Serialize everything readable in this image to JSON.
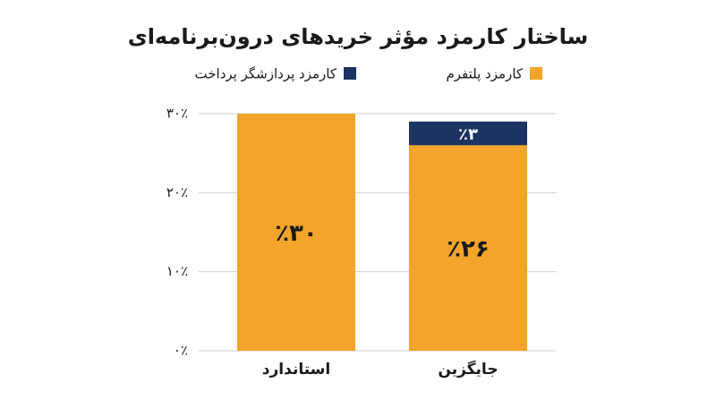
{
  "chart_data": {
    "type": "stacked_bar",
    "title": "ساختار کارمزد مؤثر خریدهای درون‌برنامه‌ای",
    "categories": [
      "استاندارد",
      "جایگزین"
    ],
    "series": [
      {
        "name": "کارمزد پلتفرم",
        "color": "#f2a52a",
        "values": [
          30,
          26
        ],
        "value_labels": [
          "٪۳۰",
          "٪۲۶"
        ]
      },
      {
        "name": "کارمزد پردازشگر پرداخت",
        "color": "#1b3461",
        "values": [
          null,
          3
        ],
        "value_labels": [
          null,
          "٪۳"
        ]
      }
    ],
    "ylim": [
      0,
      30
    ],
    "yticks": [
      {
        "value": 0,
        "label": "۰٪"
      },
      {
        "value": 10,
        "label": "۱۰٪"
      },
      {
        "value": 20,
        "label": "۲۰٪"
      },
      {
        "value": 30,
        "label": "۳۰٪"
      }
    ],
    "grid": true
  }
}
